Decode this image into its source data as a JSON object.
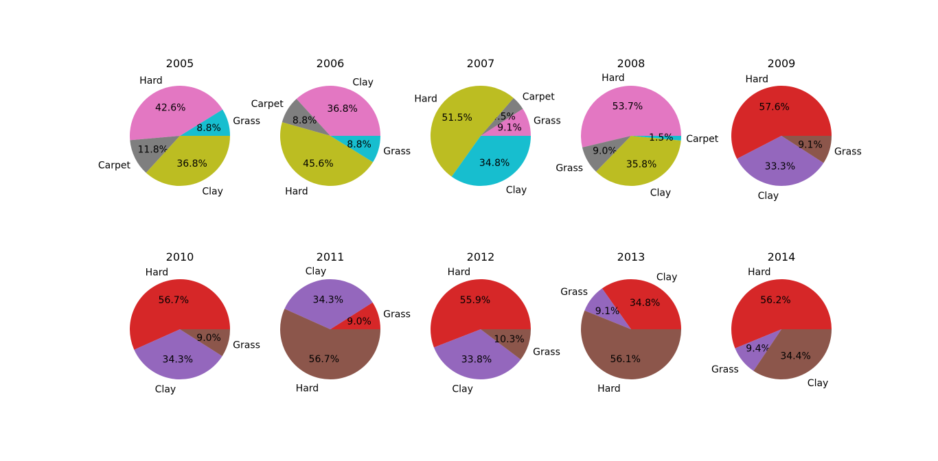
{
  "colors": {
    "Hard": "#e377c2",
    "Carpet": "#7f7f7f",
    "Clay": "#bcbd22",
    "Grass": "#17becf",
    "Hard_late": "#d62728",
    "Clay_late": "#9467bd",
    "Grass_late": "#8c564b"
  },
  "chart_data": [
    {
      "type": "pie",
      "title": "2005",
      "slices": [
        {
          "label": "Grass",
          "value": 8.8,
          "pct_label": "8.8%",
          "color": "#17becf"
        },
        {
          "label": "Hard",
          "value": 42.6,
          "pct_label": "42.6%",
          "color": "#e377c2"
        },
        {
          "label": "Carpet",
          "value": 11.8,
          "pct_label": "11.8%",
          "color": "#7f7f7f"
        },
        {
          "label": "Clay",
          "value": 36.8,
          "pct_label": "36.8%",
          "color": "#bcbd22"
        }
      ]
    },
    {
      "type": "pie",
      "title": "2006",
      "slices": [
        {
          "label": "Clay",
          "value": 36.8,
          "pct_label": "36.8%",
          "color": "#e377c2"
        },
        {
          "label": "Carpet",
          "value": 8.8,
          "pct_label": "8.8%",
          "color": "#7f7f7f"
        },
        {
          "label": "Hard",
          "value": 45.6,
          "pct_label": "45.6%",
          "color": "#bcbd22"
        },
        {
          "label": "Grass",
          "value": 8.8,
          "pct_label": "8.8%",
          "color": "#17becf"
        }
      ]
    },
    {
      "type": "pie",
      "title": "2007",
      "slices": [
        {
          "label": "Grass",
          "value": 9.1,
          "pct_label": "9.1%",
          "color": "#e377c2"
        },
        {
          "label": "Carpet",
          "value": 4.5,
          "pct_label": "4.5%",
          "color": "#7f7f7f"
        },
        {
          "label": "Hard",
          "value": 51.5,
          "pct_label": "51.5%",
          "color": "#bcbd22"
        },
        {
          "label": "Clay",
          "value": 34.8,
          "pct_label": "34.8%",
          "color": "#17becf"
        }
      ]
    },
    {
      "type": "pie",
      "title": "2008",
      "slices": [
        {
          "label": "Hard",
          "value": 53.7,
          "pct_label": "53.7%",
          "color": "#e377c2"
        },
        {
          "label": "Grass",
          "value": 9.0,
          "pct_label": "9.0%",
          "color": "#7f7f7f"
        },
        {
          "label": "Clay",
          "value": 35.8,
          "pct_label": "35.8%",
          "color": "#bcbd22"
        },
        {
          "label": "Carpet",
          "value": 1.5,
          "pct_label": "1.5%",
          "color": "#17becf"
        }
      ]
    },
    {
      "type": "pie",
      "title": "2009",
      "slices": [
        {
          "label": "Hard",
          "value": 57.6,
          "pct_label": "57.6%",
          "color": "#d62728"
        },
        {
          "label": "Clay",
          "value": 33.3,
          "pct_label": "33.3%",
          "color": "#9467bd"
        },
        {
          "label": "Grass",
          "value": 9.1,
          "pct_label": "9.1%",
          "color": "#8c564b"
        }
      ]
    },
    {
      "type": "pie",
      "title": "2010",
      "slices": [
        {
          "label": "Hard",
          "value": 56.7,
          "pct_label": "56.7%",
          "color": "#d62728"
        },
        {
          "label": "Clay",
          "value": 34.3,
          "pct_label": "34.3%",
          "color": "#9467bd"
        },
        {
          "label": "Grass",
          "value": 9.0,
          "pct_label": "9.0%",
          "color": "#8c564b"
        }
      ]
    },
    {
      "type": "pie",
      "title": "2011",
      "slices": [
        {
          "label": "Grass",
          "value": 9.0,
          "pct_label": "9.0%",
          "color": "#d62728"
        },
        {
          "label": "Clay",
          "value": 34.3,
          "pct_label": "34.3%",
          "color": "#9467bd"
        },
        {
          "label": "Hard",
          "value": 56.7,
          "pct_label": "56.7%",
          "color": "#8c564b"
        }
      ]
    },
    {
      "type": "pie",
      "title": "2012",
      "slices": [
        {
          "label": "Hard",
          "value": 55.9,
          "pct_label": "55.9%",
          "color": "#d62728"
        },
        {
          "label": "Clay",
          "value": 33.8,
          "pct_label": "33.8%",
          "color": "#9467bd"
        },
        {
          "label": "Grass",
          "value": 10.3,
          "pct_label": "10.3%",
          "color": "#8c564b"
        }
      ]
    },
    {
      "type": "pie",
      "title": "2013",
      "slices": [
        {
          "label": "Clay",
          "value": 34.8,
          "pct_label": "34.8%",
          "color": "#d62728"
        },
        {
          "label": "Grass",
          "value": 9.1,
          "pct_label": "9.1%",
          "color": "#9467bd"
        },
        {
          "label": "Hard",
          "value": 56.1,
          "pct_label": "56.1%",
          "color": "#8c564b"
        }
      ]
    },
    {
      "type": "pie",
      "title": "2014",
      "slices": [
        {
          "label": "Hard",
          "value": 56.2,
          "pct_label": "56.2%",
          "color": "#d62728"
        },
        {
          "label": "Grass",
          "value": 9.4,
          "pct_label": "9.4%",
          "color": "#9467bd"
        },
        {
          "label": "Clay",
          "value": 34.4,
          "pct_label": "34.4%",
          "color": "#8c564b"
        }
      ]
    }
  ]
}
